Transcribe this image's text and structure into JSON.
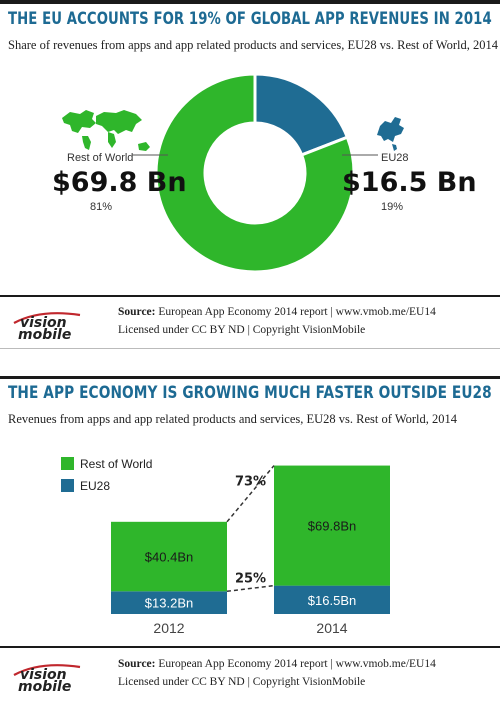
{
  "panel1": {
    "title": "THE EU ACCOUNTS FOR 19% OF GLOBAL APP REVENUES IN 2014",
    "subtitle": "Share of revenues from apps and app related products and services, EU28 vs. Rest of World, 2014",
    "source_label": "Source:",
    "source_text": "European App Economy 2014 report | www.vmob.me/EU14",
    "license": "Licensed under CC BY ND | Copyright VisionMobile"
  },
  "panel2": {
    "title": "THE APP ECONOMY IS GROWING MUCH FASTER OUTSIDE EU28",
    "subtitle": "Revenues from apps and app related products and services, EU28 vs. Rest of World, 2014",
    "source_label": "Source:",
    "source_text": "European App Economy 2014 report | www.vmob.me/EU14",
    "license": "Licensed under CC BY ND | Copyright VisionMobile"
  },
  "logo": {
    "line1": "vision",
    "line2": "mobile"
  },
  "icons": {
    "rest_of_world": "world-map-icon",
    "eu28": "europe-map-icon"
  },
  "colors": {
    "green": "#2fb62b",
    "blue": "#1f6c93",
    "title": "#1d6a93"
  },
  "chart_data": [
    {
      "type": "pie",
      "title": "THE EU ACCOUNTS FOR 19% OF GLOBAL APP REVENUES IN 2014",
      "donut": true,
      "slices": [
        {
          "name": "Rest of World",
          "value": 69.8,
          "value_label": "$69.8 Bn",
          "percent_label": "81%",
          "color": "#2fb62b"
        },
        {
          "name": "EU28",
          "value": 16.5,
          "value_label": "$16.5 Bn",
          "percent_label": "19%",
          "color": "#1f6c93"
        }
      ]
    },
    {
      "type": "bar",
      "stacked": true,
      "title": "THE APP ECONOMY IS GROWING MUCH FASTER OUTSIDE EU28",
      "categories": [
        "2012",
        "2014"
      ],
      "series": [
        {
          "name": "EU28",
          "values": [
            13.2,
            16.5
          ],
          "labels": [
            "$13.2Bn",
            "$16.5Bn"
          ],
          "color": "#1f6c93"
        },
        {
          "name": "Rest of World",
          "values": [
            40.4,
            69.8
          ],
          "labels": [
            "$40.4Bn",
            "$69.8Bn"
          ],
          "color": "#2fb62b"
        }
      ],
      "growth_labels": {
        "rest_of_world": "73%",
        "eu28": "25%"
      },
      "legend": {
        "entries": [
          "Rest of World",
          "EU28"
        ],
        "position": "top-left"
      },
      "grid": false
    }
  ]
}
